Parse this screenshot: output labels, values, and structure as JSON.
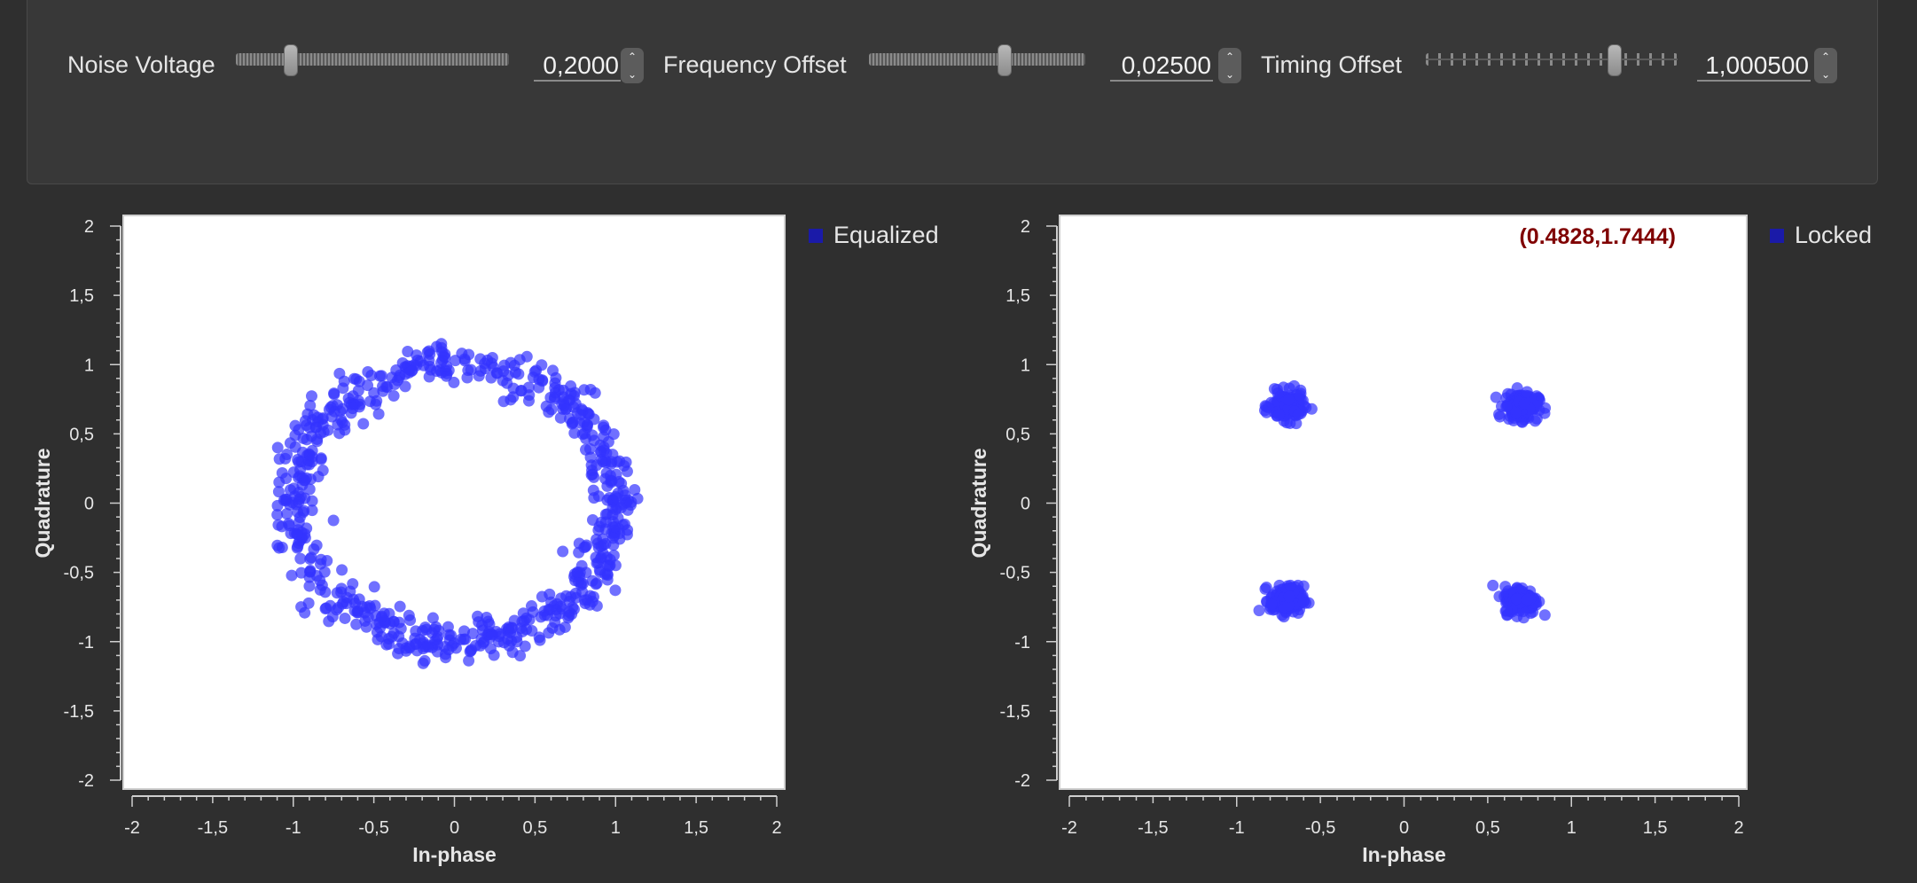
{
  "controls": [
    {
      "label": "Noise Voltage",
      "value": "0,2000",
      "position": 0.2
    },
    {
      "label": "Frequency Offset",
      "value": "0,02500",
      "position": 0.625
    },
    {
      "label": "Timing Offset",
      "value": "1,000500",
      "position": 0.75
    }
  ],
  "colors": {
    "point": "#3333ff",
    "legend": "#1a1aa8",
    "readout": "#800000",
    "panel": "#383838",
    "background": "#2f2f2f"
  },
  "chart_data": [
    {
      "type": "scatter",
      "title": "",
      "xlabel": "In-phase",
      "ylabel": "Quadrature",
      "xlim": [
        -2,
        2
      ],
      "ylim": [
        -2,
        2
      ],
      "x_ticks": [
        "-2",
        "-1,5",
        "-1",
        "-0,5",
        "0",
        "0,5",
        "1",
        "1,5",
        "2"
      ],
      "y_ticks": [
        "2",
        "1,5",
        "1",
        "0,5",
        "0",
        "-0,5",
        "-1",
        "-1,5",
        "-2"
      ],
      "legend": "Equalized",
      "legend_position": "top-right outside",
      "readout": "",
      "series": [
        {
          "name": "Equalized",
          "shape": "ring",
          "center": [
            0,
            0
          ],
          "radius": 1.0,
          "spread": 0.07,
          "count": 700
        }
      ]
    },
    {
      "type": "scatter",
      "title": "",
      "xlabel": "In-phase",
      "ylabel": "Quadrature",
      "xlim": [
        -2,
        2
      ],
      "ylim": [
        -2,
        2
      ],
      "x_ticks": [
        "-2",
        "-1,5",
        "-1",
        "-0,5",
        "0",
        "0,5",
        "1",
        "1,5",
        "2"
      ],
      "y_ticks": [
        "2",
        "1,5",
        "1",
        "0,5",
        "0",
        "-0,5",
        "-1",
        "-1,5",
        "-2"
      ],
      "legend": "Locked",
      "legend_position": "top-right outside",
      "readout": "(0.4828,1.7444)",
      "series": [
        {
          "name": "Locked",
          "shape": "clusters",
          "centers": [
            [
              -0.7,
              0.7
            ],
            [
              0.7,
              0.7
            ],
            [
              -0.7,
              -0.7
            ],
            [
              0.7,
              -0.7
            ]
          ],
          "spread": 0.05,
          "count": 600
        }
      ]
    }
  ]
}
